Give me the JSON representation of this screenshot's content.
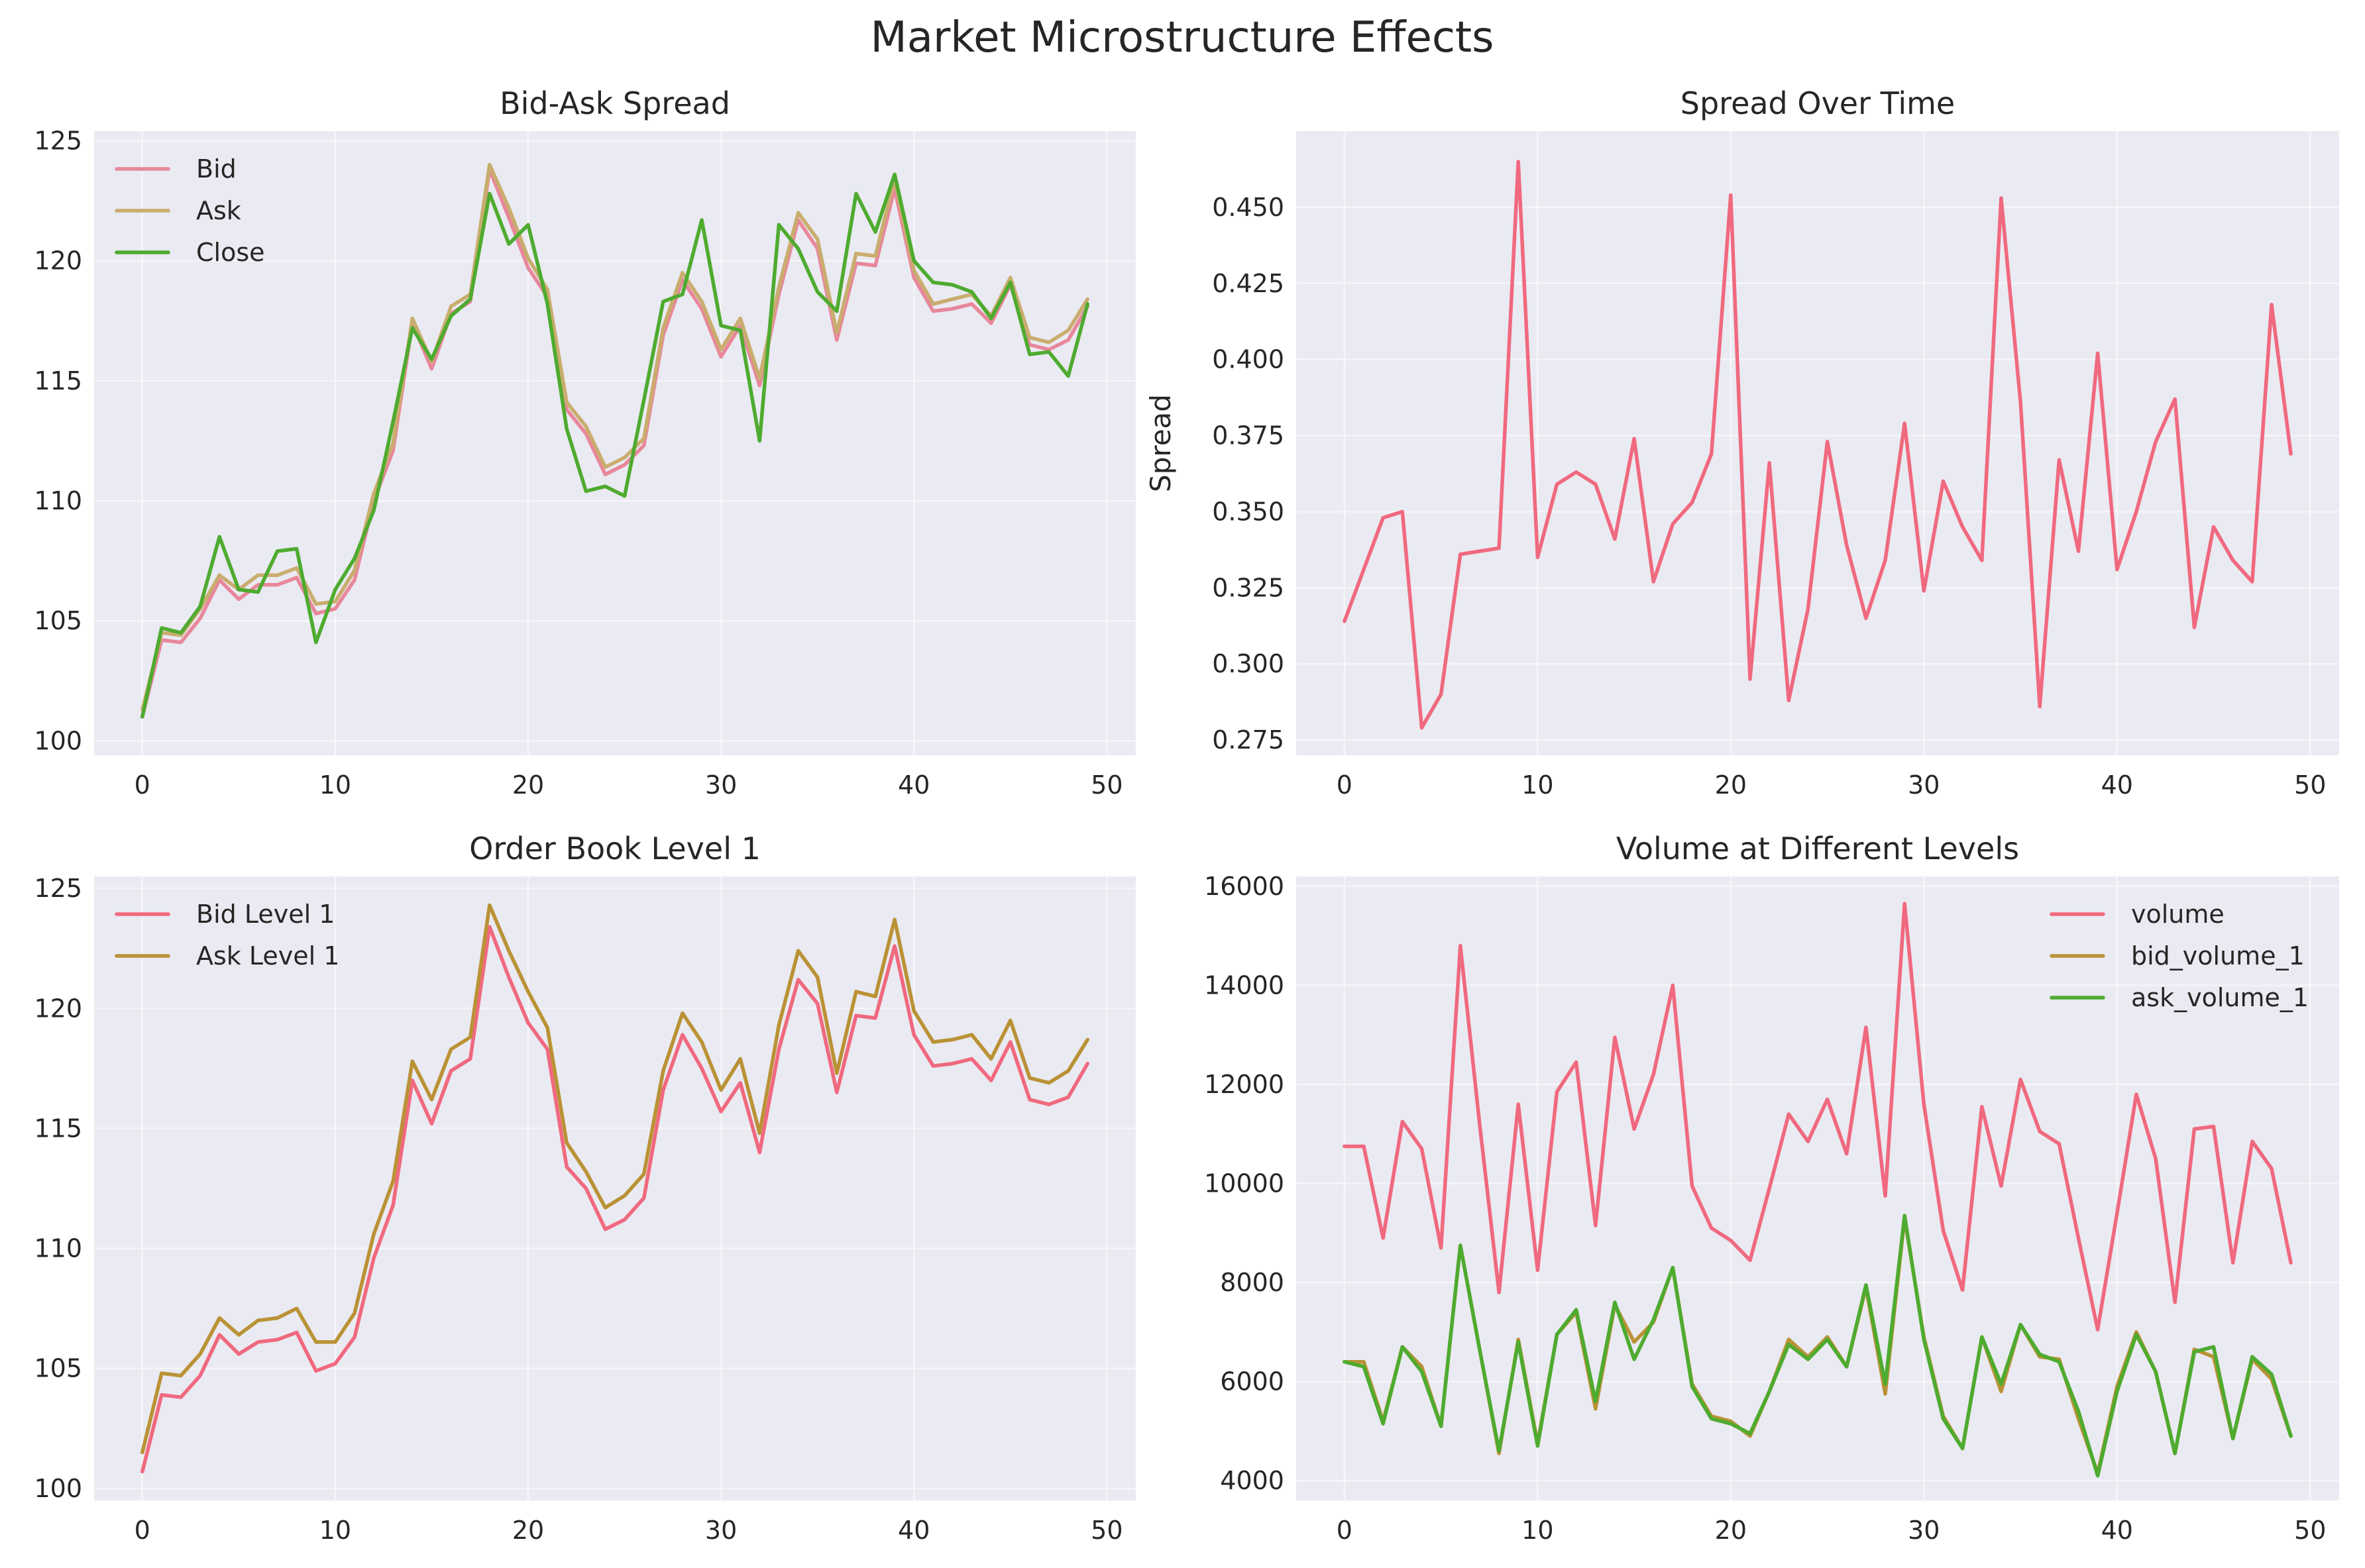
{
  "figure": {
    "title": "Market Microstructure Effects"
  },
  "chart_data": [
    {
      "type": "line",
      "title": "Bid-Ask Spread",
      "xlabel": "",
      "ylabel": "",
      "xlim": [
        -2.5,
        51.5
      ],
      "ylim": [
        99.4,
        125.4
      ],
      "xticks": [
        0,
        10,
        20,
        30,
        40,
        50
      ],
      "yticks": [
        100,
        105,
        110,
        115,
        120,
        125
      ],
      "grid": true,
      "legend": "top-left",
      "series": [
        {
          "name": "Bid",
          "color": "#e8879b",
          "values": [
            101.0,
            104.2,
            104.1,
            105.1,
            106.7,
            105.9,
            106.5,
            106.5,
            106.8,
            105.3,
            105.5,
            106.7,
            110.0,
            112.1,
            117.4,
            115.5,
            117.8,
            118.3,
            123.8,
            121.8,
            119.7,
            118.5,
            113.8,
            112.8,
            111.1,
            111.5,
            112.3,
            116.9,
            119.2,
            118.0,
            116.0,
            117.3,
            114.8,
            118.6,
            121.7,
            120.5,
            116.7,
            119.9,
            119.8,
            123.0,
            119.3,
            117.9,
            118.0,
            118.2,
            117.4,
            119.0,
            116.5,
            116.3,
            116.7,
            118.1
          ]
        },
        {
          "name": "Ask",
          "color": "#c9ad6e",
          "values": [
            101.3,
            104.5,
            104.4,
            105.5,
            106.9,
            106.3,
            106.9,
            106.9,
            107.2,
            105.7,
            105.8,
            107.1,
            110.3,
            112.4,
            117.6,
            115.8,
            118.1,
            118.6,
            124.0,
            122.2,
            120.1,
            118.8,
            114.1,
            113.1,
            111.4,
            111.8,
            112.6,
            117.2,
            119.5,
            118.3,
            116.3,
            117.6,
            115.1,
            118.9,
            122.0,
            120.9,
            117.0,
            120.3,
            120.2,
            123.4,
            119.6,
            118.2,
            118.4,
            118.6,
            117.7,
            119.3,
            116.8,
            116.6,
            117.1,
            118.4
          ]
        },
        {
          "name": "Close",
          "color": "#4eab2f",
          "values": [
            101.0,
            104.7,
            104.5,
            105.6,
            108.5,
            106.3,
            106.2,
            107.9,
            108.0,
            104.1,
            106.3,
            107.6,
            109.6,
            113.3,
            117.2,
            115.9,
            117.7,
            118.4,
            122.8,
            120.7,
            121.5,
            118.2,
            113.0,
            110.4,
            110.6,
            110.2,
            114.2,
            118.3,
            118.6,
            121.7,
            117.3,
            117.1,
            112.5,
            121.5,
            120.5,
            118.7,
            117.9,
            122.8,
            121.2,
            123.6,
            120.0,
            119.1,
            119.0,
            118.7,
            117.6,
            119.1,
            116.1,
            116.2,
            115.2,
            118.2
          ]
        }
      ]
    },
    {
      "type": "line",
      "title": "Spread Over Time",
      "xlabel": "",
      "ylabel": "Spread",
      "xlim": [
        -2.5,
        51.5
      ],
      "ylim": [
        0.27,
        0.475
      ],
      "xticks": [
        0,
        10,
        20,
        30,
        40,
        50
      ],
      "yticks": [
        0.275,
        0.3,
        0.325,
        0.35,
        0.375,
        0.4,
        0.425,
        0.45
      ],
      "ytick_labels": [
        "0.275",
        "0.300",
        "0.325",
        "0.350",
        "0.375",
        "0.400",
        "0.425",
        "0.450"
      ],
      "grid": true,
      "legend": "none",
      "series": [
        {
          "name": "",
          "color": "#f0697f",
          "values": [
            0.314,
            0.331,
            0.348,
            0.35,
            0.279,
            0.29,
            0.336,
            0.337,
            0.338,
            0.465,
            0.335,
            0.359,
            0.363,
            0.359,
            0.341,
            0.374,
            0.327,
            0.346,
            0.353,
            0.369,
            0.454,
            0.295,
            0.366,
            0.288,
            0.318,
            0.373,
            0.339,
            0.315,
            0.334,
            0.379,
            0.324,
            0.36,
            0.345,
            0.334,
            0.453,
            0.386,
            0.286,
            0.367,
            0.337,
            0.402,
            0.331,
            0.35,
            0.373,
            0.387,
            0.312,
            0.345,
            0.334,
            0.327,
            0.418,
            0.369
          ]
        }
      ]
    },
    {
      "type": "line",
      "title": "Order Book Level 1",
      "xlabel": "",
      "ylabel": "",
      "xlim": [
        -2.5,
        51.5
      ],
      "ylim": [
        99.5,
        125.5
      ],
      "xticks": [
        0,
        10,
        20,
        30,
        40,
        50
      ],
      "yticks": [
        100,
        105,
        110,
        115,
        120,
        125
      ],
      "grid": true,
      "legend": "top-left",
      "series": [
        {
          "name": "Bid Level 1",
          "color": "#f0697f",
          "values": [
            100.7,
            103.9,
            103.8,
            104.7,
            106.4,
            105.6,
            106.1,
            106.2,
            106.5,
            104.9,
            105.2,
            106.3,
            109.6,
            111.8,
            117.0,
            115.2,
            117.4,
            117.9,
            123.4,
            121.3,
            119.4,
            118.3,
            113.4,
            112.5,
            110.8,
            111.2,
            112.1,
            116.6,
            118.9,
            117.5,
            115.7,
            116.9,
            114.0,
            118.3,
            121.2,
            120.2,
            116.5,
            119.7,
            119.6,
            122.6,
            118.9,
            117.6,
            117.7,
            117.9,
            117.0,
            118.6,
            116.2,
            116.0,
            116.3,
            117.7
          ]
        },
        {
          "name": "Ask Level 1",
          "color": "#ba9236",
          "values": [
            101.5,
            104.8,
            104.7,
            105.6,
            107.1,
            106.4,
            107.0,
            107.1,
            107.5,
            106.1,
            106.1,
            107.3,
            110.6,
            112.8,
            117.8,
            116.2,
            118.3,
            118.8,
            124.3,
            122.4,
            120.7,
            119.2,
            114.4,
            113.2,
            111.7,
            112.2,
            113.1,
            117.4,
            119.8,
            118.6,
            116.6,
            117.9,
            114.8,
            119.3,
            122.4,
            121.3,
            117.3,
            120.7,
            120.5,
            123.7,
            119.9,
            118.6,
            118.7,
            118.9,
            117.9,
            119.5,
            117.1,
            116.9,
            117.4,
            118.7
          ]
        }
      ]
    },
    {
      "type": "line",
      "title": "Volume at Different Levels",
      "xlabel": "",
      "ylabel": "",
      "xlim": [
        -2.5,
        51.5
      ],
      "ylim": [
        3600,
        16200
      ],
      "xticks": [
        0,
        10,
        20,
        30,
        40,
        50
      ],
      "yticks": [
        4000,
        6000,
        8000,
        10000,
        12000,
        14000,
        16000
      ],
      "grid": true,
      "legend": "top-right",
      "series": [
        {
          "name": "volume",
          "color": "#f0697f",
          "values": [
            10750,
            10750,
            8900,
            11250,
            10700,
            8700,
            14800,
            11200,
            7800,
            11600,
            8250,
            11850,
            12450,
            9150,
            12950,
            11100,
            12200,
            14000,
            9950,
            9100,
            8850,
            8450,
            9900,
            11400,
            10850,
            11700,
            10600,
            13150,
            9750,
            15650,
            11600,
            9050,
            7850,
            11550,
            9950,
            12100,
            11050,
            10800,
            8900,
            7050,
            9400,
            11800,
            10500,
            7600,
            11100,
            11150,
            8400,
            10850,
            10300,
            8400
          ]
        },
        {
          "name": "bid_volume_1",
          "color": "#ba9236",
          "values": [
            6400,
            6400,
            5200,
            6700,
            6300,
            5100,
            8750,
            6650,
            4550,
            6850,
            4750,
            6950,
            7400,
            5450,
            7550,
            6800,
            7200,
            8300,
            5950,
            5300,
            5200,
            4900,
            5800,
            6850,
            6500,
            6900,
            6300,
            7900,
            5750,
            9300,
            6900,
            5300,
            4650,
            6900,
            5800,
            7150,
            6500,
            6450,
            5250,
            4150,
            5900,
            7000,
            6200,
            4550,
            6650,
            6500,
            4850,
            6450,
            6050,
            4900
          ]
        },
        {
          "name": "ask_volume_1",
          "color": "#4eab2f",
          "values": [
            6400,
            6300,
            5150,
            6700,
            6200,
            5100,
            8750,
            6650,
            4600,
            6800,
            4700,
            6950,
            7450,
            5600,
            7600,
            6450,
            7250,
            8300,
            5900,
            5250,
            5150,
            4950,
            5800,
            6750,
            6450,
            6850,
            6300,
            7950,
            5950,
            9350,
            6850,
            5250,
            4650,
            6900,
            5950,
            7150,
            6550,
            6400,
            5400,
            4100,
            5800,
            6950,
            6200,
            4550,
            6600,
            6700,
            4850,
            6500,
            6150,
            4900
          ]
        }
      ]
    }
  ]
}
